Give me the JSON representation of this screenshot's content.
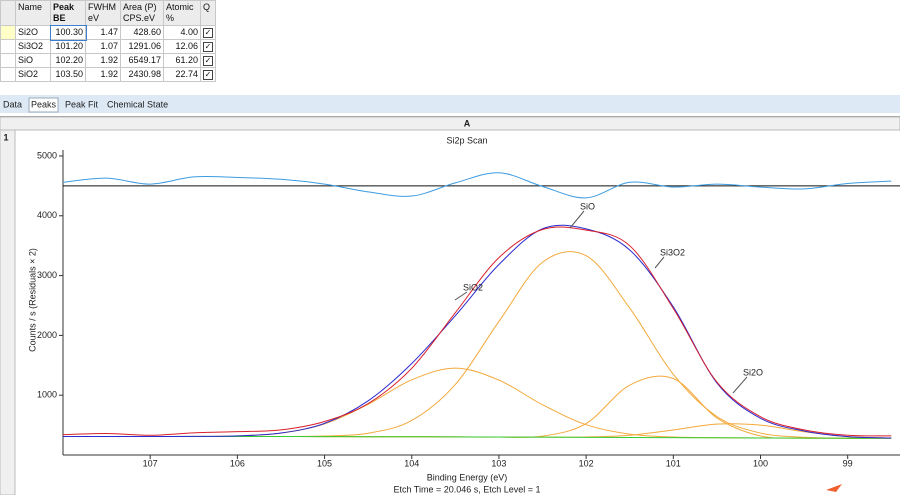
{
  "table": {
    "header": [
      "Name",
      "Peak BE",
      "FWHM eV",
      "Area (P) CPS.eV",
      "Atomic %",
      "Q"
    ],
    "rows": [
      [
        "Si2O",
        "100.30",
        "1.47",
        "428.60",
        "4.00",
        true
      ],
      [
        "Si3O2",
        "101.20",
        "1.07",
        "1291.06",
        "12.06",
        true
      ],
      [
        "SiO",
        "102.20",
        "1.92",
        "6549.17",
        "61.20",
        true
      ],
      [
        "SiO2",
        "103.50",
        "1.92",
        "2430.98",
        "22.74",
        true
      ]
    ]
  },
  "tabs": [
    "Data",
    "Peaks",
    "Peak Fit",
    "Chemical State"
  ],
  "active_tab": 1,
  "grid_column": "A",
  "grid_row": "1",
  "chart_data": {
    "type": "line",
    "title": "Si2p Scan",
    "x_label": "Binding Energy (eV)",
    "y_label": "Counts / s  (Residuals × 2)",
    "footer": "Etch Time = 20.046 s, Etch Level = 1",
    "x": [
      108,
      107.5,
      107,
      106.5,
      106,
      105.5,
      105,
      104.5,
      104,
      103.5,
      103,
      102.5,
      102,
      101.5,
      101,
      100.5,
      100,
      99.5,
      99,
      98.5
    ],
    "series": [
      {
        "name": "SiO2",
        "color": "#f2a93b",
        "values": [
          310,
          310,
          310,
          311,
          320,
          366,
          520,
          848,
          1257,
          1453,
          1252,
          840,
          507,
          349,
          300,
          289,
          285,
          283,
          280,
          280
        ]
      },
      {
        "name": "SiO",
        "color": "#f2a93b",
        "values": [
          310,
          310,
          310,
          310,
          310,
          310,
          317,
          364,
          578,
          1180,
          2233,
          3223,
          3332,
          2457,
          1349,
          644,
          367,
          296,
          281,
          280
        ]
      },
      {
        "name": "Si3O2",
        "color": "#f2a93b",
        "values": [
          310,
          310,
          310,
          310,
          310,
          309,
          308,
          306,
          305,
          303,
          300,
          316,
          526,
          1168,
          1279,
          620,
          318,
          283,
          280,
          280
        ]
      },
      {
        "name": "Si2O",
        "color": "#f2a93b",
        "values": [
          310,
          310,
          310,
          310,
          310,
          309,
          308,
          306,
          305,
          303,
          300,
          298,
          301,
          330,
          418,
          516,
          499,
          389,
          307,
          284
        ]
      },
      {
        "color": "#33cc33",
        "values": [
          310,
          310,
          310,
          310,
          310,
          309,
          308,
          306,
          305,
          303,
          300,
          298,
          295,
          292,
          290,
          288,
          285,
          283,
          280,
          280
        ]
      },
      {
        "color": "#2a2ad0",
        "values": [
          310,
          310,
          310,
          311,
          320,
          367,
          529,
          906,
          1530,
          2330,
          3185,
          3783,
          3781,
          3428,
          2476,
          1205,
          614,
          402,
          308,
          284
        ]
      },
      {
        "color": "#d8202c",
        "values": [
          340,
          360,
          330,
          370,
          390,
          420,
          560,
          860,
          1450,
          2380,
          3300,
          3770,
          3760,
          3500,
          2450,
          1220,
          640,
          420,
          330,
          320
        ]
      },
      {
        "color": "#3d9be0",
        "values": [
          4560,
          4630,
          4530,
          4650,
          4640,
          4610,
          4530,
          4400,
          4330,
          4550,
          4720,
          4490,
          4300,
          4560,
          4480,
          4530,
          4480,
          4450,
          4540,
          4580
        ]
      }
    ],
    "reference_line": 4500,
    "xlim": [
      108,
      98.4
    ],
    "ylim": [
      0,
      5100
    ],
    "xticks": [
      107,
      106,
      105,
      104,
      103,
      102,
      101,
      100,
      99
    ],
    "yticks": [
      1000,
      2000,
      3000,
      4000,
      5000
    ],
    "grid": false
  }
}
